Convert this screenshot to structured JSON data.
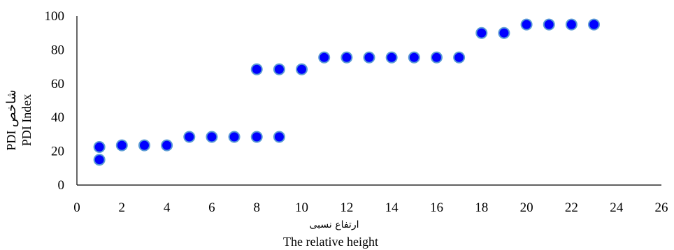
{
  "chart_data": {
    "type": "scatter",
    "xlabel_fa": "ارتفاع نسبی",
    "xlabel_en": "The relative height",
    "ylabel_fa": "شاخص PDI",
    "ylabel_en": "PDI Index",
    "xlim": [
      0,
      26
    ],
    "ylim": [
      0,
      100
    ],
    "x_ticks": [
      0,
      2,
      4,
      6,
      8,
      10,
      12,
      14,
      16,
      18,
      20,
      22,
      24,
      26
    ],
    "y_ticks": [
      0,
      20,
      40,
      60,
      80,
      100
    ],
    "grid": false,
    "legend": "none",
    "marker_color": "#0000ff",
    "marker_edge_color": "#5b9bd5",
    "series": [
      {
        "points": [
          {
            "x": 1,
            "y": 15
          },
          {
            "x": 1,
            "y": 22.5
          },
          {
            "x": 2,
            "y": 23.5
          },
          {
            "x": 3,
            "y": 23.5
          },
          {
            "x": 4,
            "y": 23.5
          },
          {
            "x": 5,
            "y": 28.5
          },
          {
            "x": 6,
            "y": 28.5
          },
          {
            "x": 7,
            "y": 28.5
          },
          {
            "x": 8,
            "y": 28.5
          },
          {
            "x": 9,
            "y": 28.5
          },
          {
            "x": 8,
            "y": 68.5
          },
          {
            "x": 9,
            "y": 68.5
          },
          {
            "x": 10,
            "y": 68.5
          },
          {
            "x": 11,
            "y": 75.5
          },
          {
            "x": 12,
            "y": 75.5
          },
          {
            "x": 13,
            "y": 75.5
          },
          {
            "x": 14,
            "y": 75.5
          },
          {
            "x": 15,
            "y": 75.5
          },
          {
            "x": 16,
            "y": 75.5
          },
          {
            "x": 17,
            "y": 75.5
          },
          {
            "x": 18,
            "y": 90
          },
          {
            "x": 19,
            "y": 90
          },
          {
            "x": 20,
            "y": 95
          },
          {
            "x": 21,
            "y": 95
          },
          {
            "x": 22,
            "y": 95
          },
          {
            "x": 23,
            "y": 95
          }
        ]
      }
    ]
  }
}
